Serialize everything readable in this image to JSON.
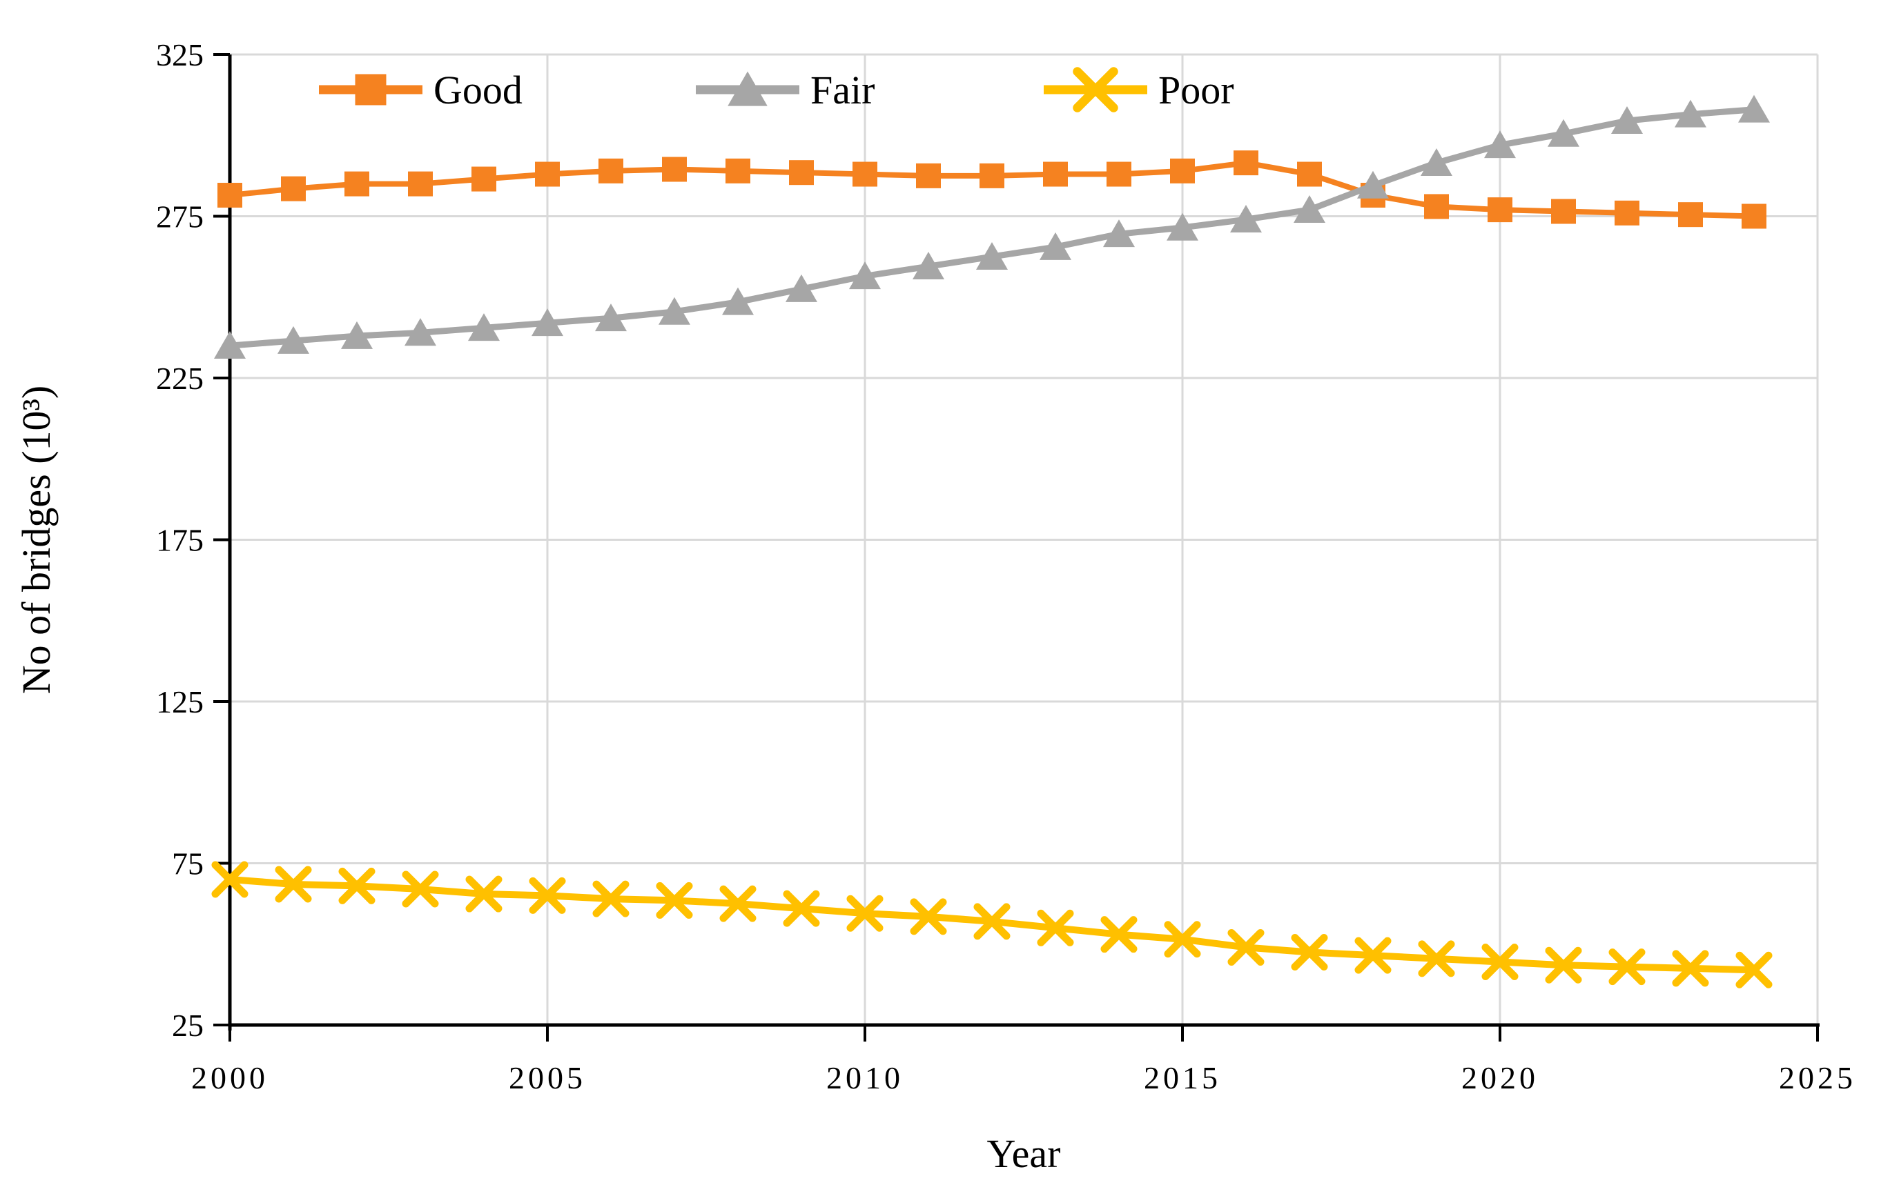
{
  "page": {
    "background": "#FFFFFF"
  },
  "chart_data": {
    "type": "line",
    "title": "",
    "xlabel": "Year",
    "ylabel": "No of bridges (10³)",
    "xlim": [
      2000,
      2025
    ],
    "ylim": [
      25,
      325
    ],
    "x_ticks": [
      2000,
      2005,
      2010,
      2015,
      2020,
      2025
    ],
    "y_ticks": [
      325,
      275,
      225,
      175,
      125,
      75,
      25
    ],
    "grid": true,
    "legend_position": "top-inside",
    "axis_color": "#000000",
    "grid_color": "#D9D9D9",
    "x": [
      2000,
      2001,
      2002,
      2003,
      2004,
      2005,
      2006,
      2007,
      2008,
      2009,
      2010,
      2011,
      2012,
      2013,
      2014,
      2015,
      2016,
      2017,
      2018,
      2019,
      2020,
      2021,
      2022,
      2023,
      2024
    ],
    "series": [
      {
        "name": "Good",
        "color": "#F58220",
        "marker": "square",
        "values": [
          281.5,
          283.5,
          285,
          285,
          286.5,
          288,
          289,
          289.5,
          289,
          288.5,
          288,
          287.5,
          287.5,
          288,
          288,
          289,
          291.5,
          288,
          281.5,
          278,
          277,
          276.5,
          276,
          275.5,
          275
        ]
      },
      {
        "name": "Fair",
        "color": "#A6A6A6",
        "marker": "triangle",
        "values": [
          235,
          236.5,
          238,
          239,
          240.5,
          242,
          243.5,
          245.5,
          248.5,
          252.5,
          256.5,
          259.5,
          262.5,
          265.5,
          269.5,
          271.5,
          274,
          277,
          284.5,
          291.5,
          297,
          300.5,
          304.5,
          306.5,
          308
        ]
      },
      {
        "name": "Poor",
        "color": "#FFC000",
        "marker": "x",
        "values": [
          70,
          68.5,
          68,
          67,
          65.5,
          65,
          64,
          63.5,
          62.5,
          61,
          59.5,
          58.5,
          57,
          55,
          53,
          51.5,
          49,
          47.5,
          46.5,
          45.5,
          44.5,
          43.5,
          43,
          42.5,
          42
        ]
      }
    ]
  }
}
